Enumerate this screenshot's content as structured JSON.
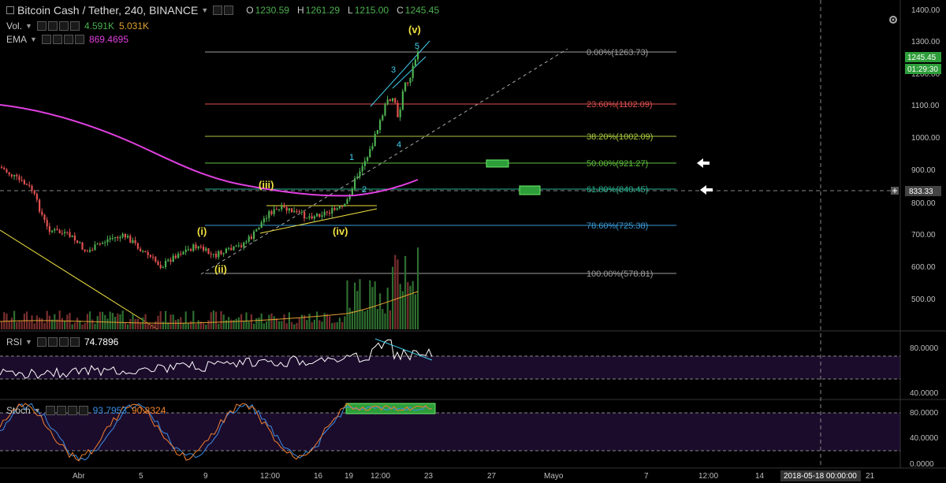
{
  "header": {
    "symbol_title": "Bitcoin Cash / Tether, 240, BINANCE",
    "ohlc": [
      {
        "key": "O",
        "value": "1230.59"
      },
      {
        "key": "H",
        "value": "1261.29"
      },
      {
        "key": "L",
        "value": "1215.00"
      },
      {
        "key": "C",
        "value": "1245.45"
      }
    ]
  },
  "indicators": {
    "vol": {
      "label": "Vol.",
      "v1": "4.591K",
      "v2": "5.031K"
    },
    "ema": {
      "label": "EMA",
      "value": "869.4695"
    },
    "rsi": {
      "label": "RSI",
      "value": "74.7896"
    },
    "stoch": {
      "label": "Stoch",
      "k": "93.7953",
      "d": "90.8324"
    }
  },
  "price_axis": {
    "ticks": [
      "1400.00",
      "1300.00",
      "1200.00",
      "1100.00",
      "1000.00",
      "900.00",
      "800.00",
      "700.00",
      "600.00",
      "500.00"
    ],
    "current_price": "1245.45",
    "countdown": "01:29:30",
    "crosshair_price": "833.33"
  },
  "rsi_axis": {
    "ticks": [
      "80.0000",
      "40.0000"
    ]
  },
  "stoch_axis": {
    "ticks": [
      "80.0000",
      "40.0000",
      "0.0000"
    ]
  },
  "time_axis": {
    "labels": [
      "Abr",
      "5",
      "9",
      "12:00",
      "16",
      "19",
      "12:00",
      "23",
      "27",
      "Mayo",
      "7",
      "12:00",
      "14",
      "21"
    ],
    "crosshair_time": "2018-05-18 00:00:00"
  },
  "fibonacci": [
    {
      "label": "0.00%(1263.73)",
      "color": "#9e9e9e"
    },
    {
      "label": "23.60%(1102.09)",
      "color": "#e05050"
    },
    {
      "label": "38.20%(1002.09)",
      "color": "#a8c93c"
    },
    {
      "label": "50.00%(921.27)",
      "color": "#5fbf3c"
    },
    {
      "label": "61.80%(840.45)",
      "color": "#28b090"
    },
    {
      "label": "78.60%(725.38)",
      "color": "#3a9ad6"
    },
    {
      "label": "100.00%(578.81)",
      "color": "#9e9e9e"
    }
  ],
  "wave_labels": {
    "yellow": [
      "(i)",
      "(ii)",
      "(iii)",
      "(iv)",
      "(v)"
    ],
    "cyan": [
      "1",
      "2",
      "3",
      "4",
      "5"
    ]
  },
  "colors": {
    "background": "#000000",
    "ema_line": "#e040e0",
    "up_candle": "#4caf50",
    "down_candle": "#e05050",
    "rsi_band": "#1c0c2c",
    "wave_yellow": "#f0e040",
    "wave_cyan": "#40d0f0"
  },
  "icons": [
    "settings-icon",
    "eye-icon",
    "close-icon",
    "plus-icon",
    "arrow-left-icon"
  ]
}
